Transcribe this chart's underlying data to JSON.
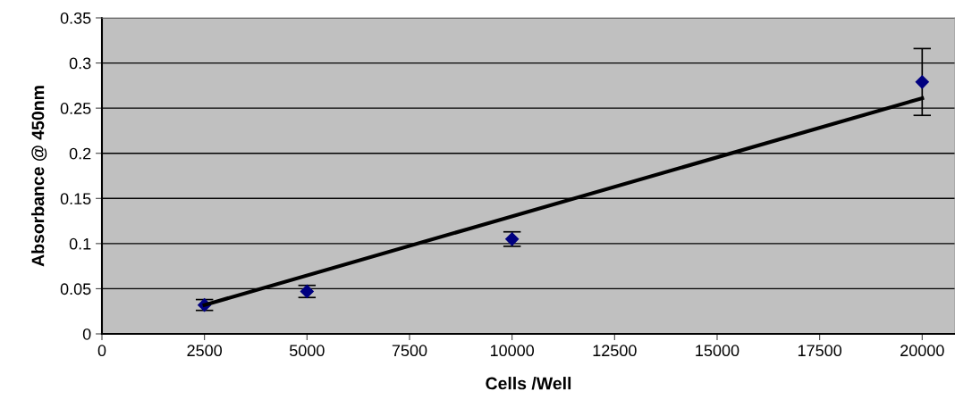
{
  "chart_data": {
    "type": "scatter",
    "xlabel": "Cells /Well",
    "ylabel": "Absorbance @ 450nm",
    "xlim": [
      0,
      20800
    ],
    "xticks": [
      0,
      2500,
      5000,
      7500,
      10000,
      12500,
      15000,
      17500,
      20000
    ],
    "ylim": [
      0,
      0.35
    ],
    "yticks": [
      0,
      0.05,
      0.1,
      0.15,
      0.2,
      0.25,
      0.3,
      0.35
    ],
    "grid": "y",
    "legend": false,
    "series": [
      {
        "color": "#000080",
        "marker": "diamond",
        "x": [
          2500,
          5000,
          10000,
          20000
        ],
        "values": [
          0.032,
          0.047,
          0.105,
          0.279
        ],
        "errors": [
          0.006,
          0.0067,
          0.008,
          0.037
        ]
      },
      {
        "type": "line",
        "color": "#000000",
        "marker": "none",
        "line_style": "solid",
        "x": [
          2500,
          20000
        ],
        "values": [
          0.032,
          0.261
        ]
      }
    ]
  }
}
